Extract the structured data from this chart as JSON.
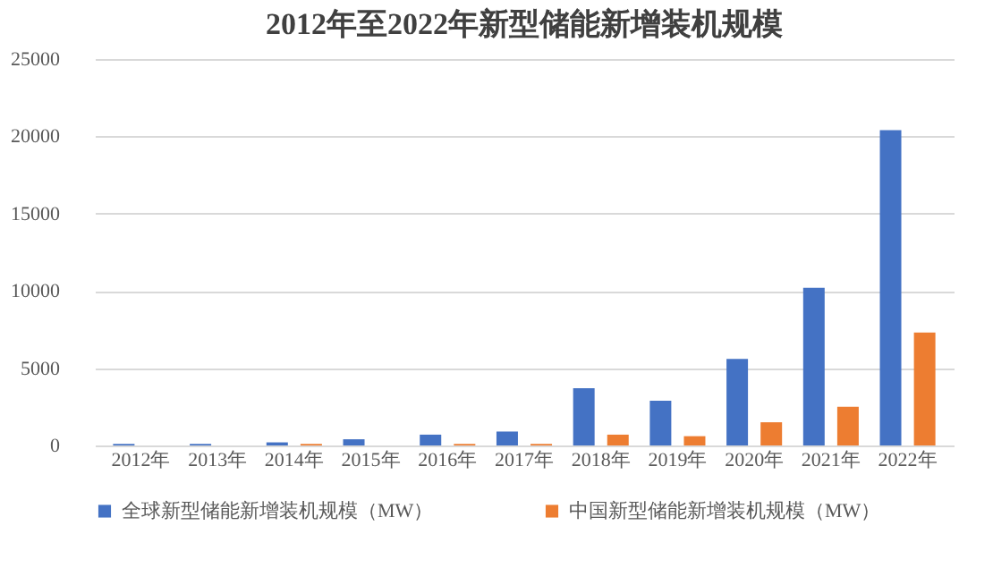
{
  "chart_data": {
    "type": "bar",
    "title": "2012年至2022年新型储能新增装机规模",
    "categories": [
      "2012年",
      "2013年",
      "2014年",
      "2015年",
      "2016年",
      "2017年",
      "2018年",
      "2019年",
      "2020年",
      "2021年",
      "2022年"
    ],
    "series": [
      {
        "name": "全球新型储能新增装机规模（MW）",
        "color": "#4472c4",
        "values": [
          100,
          100,
          200,
          400,
          700,
          900,
          3700,
          2900,
          5600,
          10200,
          20400
        ]
      },
      {
        "name": "中国新型储能新增装机规模（MW）",
        "color": "#ed7d31",
        "values": [
          0,
          0,
          100,
          0,
          100,
          100,
          700,
          600,
          1500,
          2500,
          7300
        ]
      }
    ],
    "ylim": [
      0,
      25000
    ],
    "yticks": [
      0,
      5000,
      10000,
      15000,
      20000,
      25000
    ],
    "grid": "y",
    "legend": "bottom"
  }
}
